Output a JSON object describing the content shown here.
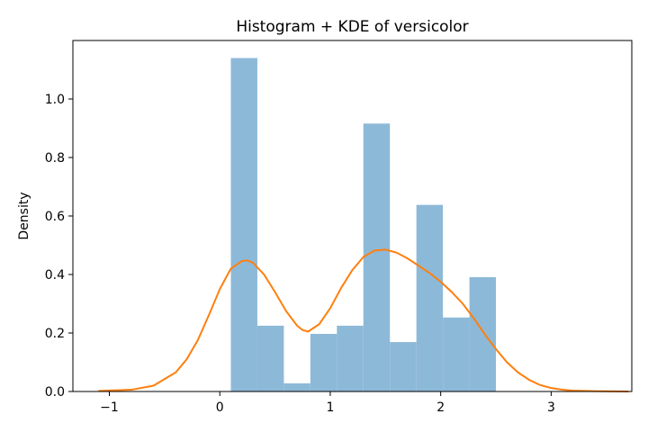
{
  "chart_data": {
    "type": "histogram",
    "title": "Histogram + KDE of versicolor",
    "xlabel": "",
    "ylabel": "Density",
    "xlim": [
      -1.33,
      3.73
    ],
    "ylim": [
      0,
      1.2
    ],
    "x_ticks": [
      {
        "value": -1,
        "label": "−1"
      },
      {
        "value": 0,
        "label": "0"
      },
      {
        "value": 1,
        "label": "1"
      },
      {
        "value": 2,
        "label": "2"
      },
      {
        "value": 3,
        "label": "3"
      }
    ],
    "y_ticks": [
      {
        "value": 0,
        "label": "0.0"
      },
      {
        "value": 0.2,
        "label": "0.2"
      },
      {
        "value": 0.4,
        "label": "0.4"
      },
      {
        "value": 0.6,
        "label": "0.6"
      },
      {
        "value": 0.8,
        "label": "0.8"
      },
      {
        "value": 1.0,
        "label": "1.0"
      }
    ],
    "grid": false,
    "histogram": {
      "color": "#8db9d8",
      "bin_edges": [
        0.1,
        0.34,
        0.58,
        0.82,
        1.06,
        1.3,
        1.54,
        1.78,
        2.02,
        2.26,
        2.5
      ],
      "densities": [
        1.14,
        0.225,
        0.028,
        0.197,
        0.225,
        0.916,
        0.169,
        0.638,
        0.253,
        0.391
      ]
    },
    "kde": {
      "color": "#ff7f0e",
      "x": [
        -1.1,
        -0.8,
        -0.6,
        -0.4,
        -0.3,
        -0.2,
        -0.1,
        0.0,
        0.1,
        0.2,
        0.25,
        0.3,
        0.4,
        0.5,
        0.6,
        0.7,
        0.75,
        0.8,
        0.9,
        1.0,
        1.1,
        1.2,
        1.3,
        1.4,
        1.5,
        1.6,
        1.7,
        1.8,
        1.9,
        2.0,
        2.1,
        2.2,
        2.3,
        2.4,
        2.5,
        2.6,
        2.7,
        2.8,
        2.9,
        3.0,
        3.1,
        3.2,
        3.4,
        3.7
      ],
      "y": [
        0.002,
        0.006,
        0.02,
        0.065,
        0.11,
        0.175,
        0.26,
        0.35,
        0.42,
        0.446,
        0.448,
        0.44,
        0.4,
        0.34,
        0.275,
        0.225,
        0.21,
        0.205,
        0.23,
        0.285,
        0.355,
        0.415,
        0.46,
        0.482,
        0.485,
        0.475,
        0.455,
        0.43,
        0.405,
        0.375,
        0.34,
        0.3,
        0.25,
        0.195,
        0.145,
        0.1,
        0.065,
        0.04,
        0.022,
        0.012,
        0.006,
        0.003,
        0.001,
        0.0
      ]
    }
  }
}
